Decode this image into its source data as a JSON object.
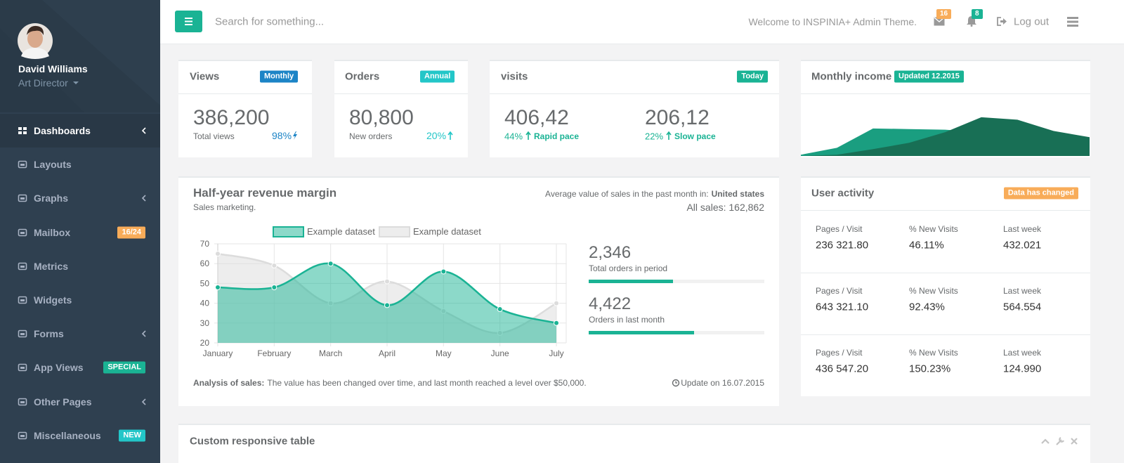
{
  "sidebar": {
    "profile": {
      "name": "David Williams",
      "role": "Art Director"
    },
    "menu": [
      {
        "label": "Dashboards"
      },
      {
        "label": "Layouts"
      },
      {
        "label": "Graphs"
      },
      {
        "label": "Mailbox",
        "badge": "16/24",
        "badge_color": "#f8ac59"
      },
      {
        "label": "Metrics"
      },
      {
        "label": "Widgets"
      },
      {
        "label": "Forms"
      },
      {
        "label": "App Views",
        "badge": "SPECIAL",
        "badge_color": "#1ab394"
      },
      {
        "label": "Other Pages"
      },
      {
        "label": "Miscellaneous",
        "badge": "NEW",
        "badge_color": "#23c6c8"
      }
    ]
  },
  "topbar": {
    "search": "Search for something...",
    "welcome": "Welcome to INSPINIA+ Admin Theme.",
    "messages": 16,
    "alerts": 8,
    "logout": "Log out"
  },
  "views": {
    "title": "Views",
    "label": "Monthly",
    "value": "386,200",
    "caption": "Total views",
    "change": "98%"
  },
  "orders": {
    "title": "Orders",
    "label": "Annual",
    "value": "80,800",
    "caption": "New orders",
    "change": "20%"
  },
  "visits": {
    "title": "visits",
    "label": "Today",
    "stats": [
      {
        "value": "406,42",
        "change": "44%",
        "caption": "Rapid pace"
      },
      {
        "value": "206,12",
        "change": "22%",
        "caption": "Slow pace"
      }
    ]
  },
  "income": {
    "title": "Monthly income",
    "label": "Updated 12.2015",
    "chart": {
      "type": "area",
      "ylim": [
        0,
        100
      ],
      "series": [
        {
          "color": "#1a9e80",
          "values": [
            2,
            13,
            44,
            43,
            42,
            38,
            30,
            20,
            15
          ]
        },
        {
          "color": "#186f55",
          "values": [
            0,
            2,
            11,
            21,
            38,
            62,
            58,
            40,
            30
          ]
        }
      ]
    }
  },
  "revenue": {
    "title": "Half-year revenue margin",
    "subtitle": "Sales marketing.",
    "region_text": "Average value of sales in the past month in:",
    "region": "United states",
    "total": "All sales: 162,862",
    "chart": {
      "type": "line",
      "categories": [
        "January",
        "February",
        "March",
        "April",
        "May",
        "June",
        "July"
      ],
      "series": [
        {
          "name": "Example dataset",
          "color": "#1ab394",
          "values": [
            48,
            48,
            60,
            39,
            56,
            37,
            30
          ]
        },
        {
          "name": "Example dataset",
          "color": "#dcdcdc",
          "values": [
            65,
            59,
            40,
            51,
            36,
            25,
            40
          ]
        }
      ],
      "ylim": [
        20,
        70
      ],
      "yticks": [
        20,
        30,
        40,
        50,
        60,
        70
      ],
      "grid": true
    },
    "stats": [
      {
        "value": "2,346",
        "caption": "Total orders in period",
        "progress": 48
      },
      {
        "value": "4,422",
        "caption": "Orders in last month",
        "progress": 60
      }
    ],
    "footer_label": "Analysis of sales:",
    "footer_text": "The value has been changed over time, and last month reached a level over $50,000.",
    "update": "Update on 16.07.2015"
  },
  "activity": {
    "title": "User activity",
    "label": "Data has changed",
    "rows": [
      [
        {
          "label": "Pages / Visit",
          "value": "236 321.80"
        },
        {
          "label": "% New Visits",
          "value": "46.11%"
        },
        {
          "label": "Last week",
          "value": "432.021"
        }
      ],
      [
        {
          "label": "Pages / Visit",
          "value": "643 321.10"
        },
        {
          "label": "% New Visits",
          "value": "92.43%"
        },
        {
          "label": "Last week",
          "value": "564.554"
        }
      ],
      [
        {
          "label": "Pages / Visit",
          "value": "436 547.20"
        },
        {
          "label": "% New Visits",
          "value": "150.23%"
        },
        {
          "label": "Last week",
          "value": "124.990"
        }
      ]
    ]
  },
  "table": {
    "title": "Custom responsive table"
  }
}
